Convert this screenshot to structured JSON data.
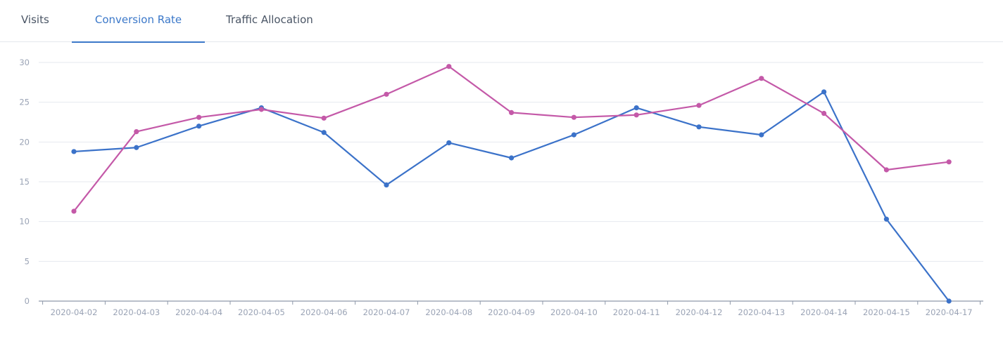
{
  "tabs": [
    {
      "label": "Visits",
      "active": false
    },
    {
      "label": "Conversion Rate",
      "active": true
    },
    {
      "label": "Traffic Allocation",
      "active": false
    }
  ],
  "colors": {
    "active_tab": "#3b78c9",
    "tab_text": "#4a5565",
    "series_1": "#3b72c9",
    "series_2": "#c459a8",
    "grid": "#e6e9ef",
    "axis_label": "#9aa3b5"
  },
  "chart_data": {
    "type": "line",
    "title": "",
    "xlabel": "",
    "ylabel": "",
    "ylim": [
      0,
      30
    ],
    "yticks": [
      "0",
      "5",
      "10",
      "15",
      "20",
      "25",
      "30"
    ],
    "grid": true,
    "legend": "none",
    "categories": [
      "2020-04-02",
      "2020-04-03",
      "2020-04-04",
      "2020-04-05",
      "2020-04-06",
      "2020-04-07",
      "2020-04-08",
      "2020-04-09",
      "2020-04-10",
      "2020-04-11",
      "2020-04-12",
      "2020-04-13",
      "2020-04-14",
      "2020-04-15",
      "2020-04-17"
    ],
    "series": [
      {
        "color": "#3b72c9",
        "values": [
          18.8,
          19.3,
          22.0,
          24.3,
          21.2,
          14.6,
          19.9,
          18.0,
          20.9,
          24.3,
          21.9,
          20.9,
          26.3,
          10.3,
          0
        ]
      },
      {
        "color": "#c459a8",
        "values": [
          11.3,
          21.3,
          23.1,
          24.1,
          23.0,
          26.0,
          29.5,
          23.7,
          23.1,
          23.4,
          24.6,
          28.0,
          23.6,
          16.5,
          17.5
        ]
      }
    ]
  }
}
